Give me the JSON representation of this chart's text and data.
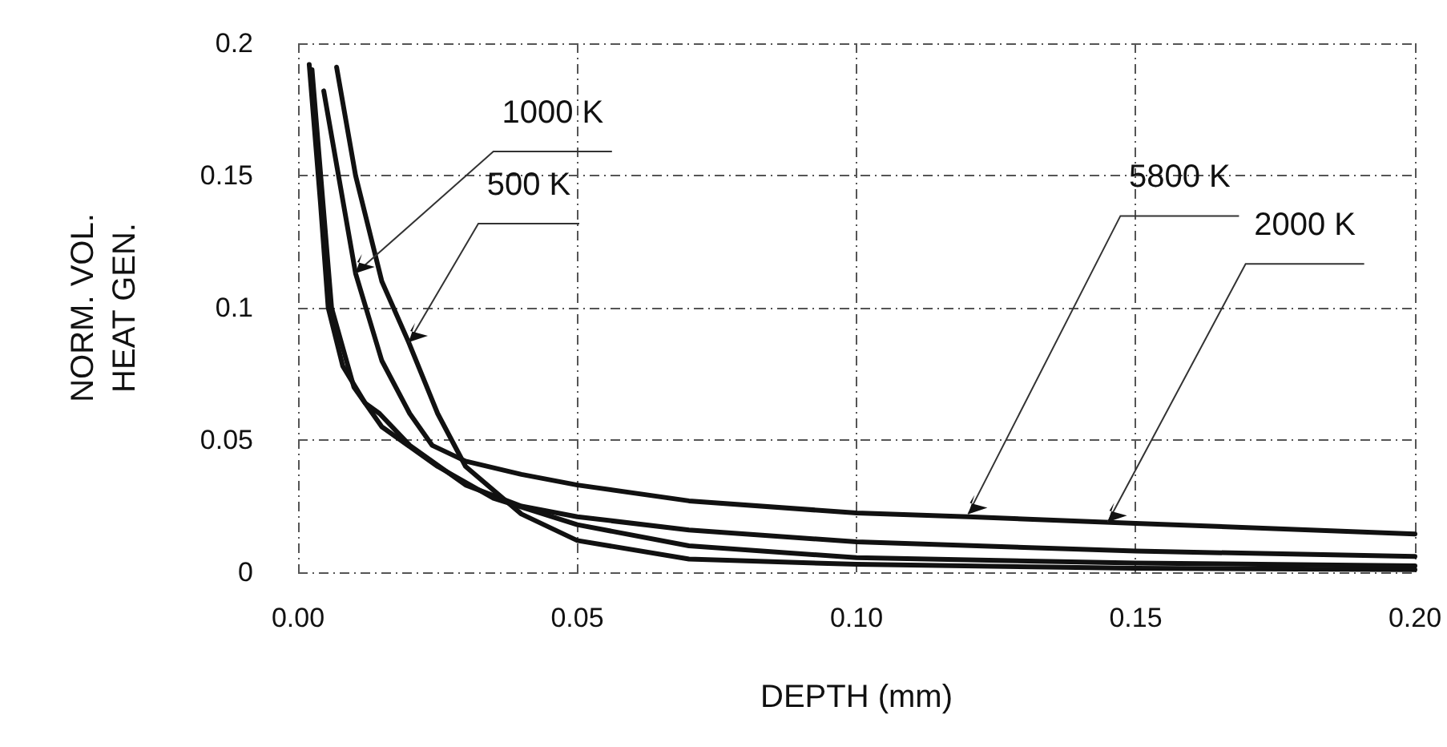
{
  "chart_data": {
    "type": "line",
    "xlabel": "DEPTH (mm)",
    "ylabel": "NORM. VOL.\nHEAT GEN.",
    "xlim": [
      0,
      0.2
    ],
    "xticks": [
      {
        "value": 0,
        "label": "0.00"
      },
      {
        "value": 0.05,
        "label": "0.05"
      },
      {
        "value": 0.1,
        "label": "0.10"
      },
      {
        "value": 0.15,
        "label": "0.15"
      },
      {
        "value": 0.2,
        "label": "0.20"
      }
    ],
    "ylim": [
      0,
      0.2
    ],
    "yticks": [
      0,
      0.05,
      0.1,
      0.15,
      0.2
    ],
    "grid": true,
    "marker": "none",
    "line_style": "solid",
    "series": [
      {
        "color": "#111111",
        "x": [
          0.002,
          0.004,
          0.0054,
          0.008,
          0.012,
          0.0146,
          0.02,
          0.03,
          0.04,
          0.05,
          0.07,
          0.1,
          0.15,
          0.2
        ],
        "values": [
          0.192,
          0.14,
          0.1,
          0.078,
          0.064,
          0.06,
          0.048,
          0.033,
          0.025,
          0.021,
          0.016,
          0.0115,
          0.008,
          0.006
        ]
      },
      {
        "color": "#111111",
        "x": [
          0.0046,
          0.0103,
          0.015,
          0.02,
          0.024,
          0.03,
          0.04,
          0.05,
          0.07,
          0.1,
          0.12,
          0.15,
          0.2
        ],
        "values": [
          0.182,
          0.113,
          0.08,
          0.06,
          0.048,
          0.042,
          0.037,
          0.033,
          0.027,
          0.0224,
          0.021,
          0.0185,
          0.0145
        ]
      },
      {
        "color": "#111111",
        "x": [
          0.0069,
          0.0103,
          0.015,
          0.0198,
          0.025,
          0.03,
          0.04,
          0.05,
          0.07,
          0.1,
          0.15,
          0.2
        ],
        "values": [
          0.191,
          0.15,
          0.11,
          0.087,
          0.06,
          0.04,
          0.022,
          0.012,
          0.005,
          0.003,
          0.0015,
          0.001
        ]
      },
      {
        "color": "#111111",
        "x": [
          0.0025,
          0.006,
          0.01,
          0.015,
          0.025,
          0.035,
          0.05,
          0.07,
          0.1,
          0.15,
          0.2
        ],
        "values": [
          0.19,
          0.1,
          0.07,
          0.055,
          0.04,
          0.028,
          0.018,
          0.01,
          0.0055,
          0.0035,
          0.0024
        ]
      }
    ],
    "annotations": [
      {
        "text": "1000 K",
        "x": 0.0103,
        "y": 0.113
      },
      {
        "text": "500 K",
        "x": 0.0198,
        "y": 0.087
      },
      {
        "text": "5800 K",
        "x": 0.12,
        "y": 0.022
      },
      {
        "text": "2000 K",
        "x": 0.145,
        "y": 0.019
      }
    ]
  }
}
